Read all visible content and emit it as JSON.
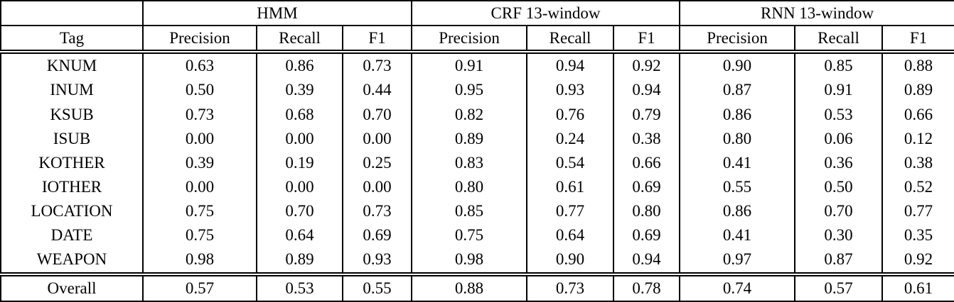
{
  "colors": {
    "text": "#000000",
    "background": "#ffffff",
    "border": "#000000"
  },
  "table": {
    "groups": [
      {
        "label": "HMM"
      },
      {
        "label": "CRF 13-window"
      },
      {
        "label": "RNN 13-window"
      }
    ],
    "tag_header": "Tag",
    "metric_headers": [
      "Precision",
      "Recall",
      "F1"
    ],
    "rows": [
      [
        "KNUM",
        "0.63",
        "0.86",
        "0.73",
        "0.91",
        "0.94",
        "0.92",
        "0.90",
        "0.85",
        "0.88"
      ],
      [
        "INUM",
        "0.50",
        "0.39",
        "0.44",
        "0.95",
        "0.93",
        "0.94",
        "0.87",
        "0.91",
        "0.89"
      ],
      [
        "KSUB",
        "0.73",
        "0.68",
        "0.70",
        "0.82",
        "0.76",
        "0.79",
        "0.86",
        "0.53",
        "0.66"
      ],
      [
        "ISUB",
        "0.00",
        "0.00",
        "0.00",
        "0.89",
        "0.24",
        "0.38",
        "0.80",
        "0.06",
        "0.12"
      ],
      [
        "KOTHER",
        "0.39",
        "0.19",
        "0.25",
        "0.83",
        "0.54",
        "0.66",
        "0.41",
        "0.36",
        "0.38"
      ],
      [
        "IOTHER",
        "0.00",
        "0.00",
        "0.00",
        "0.80",
        "0.61",
        "0.69",
        "0.55",
        "0.50",
        "0.52"
      ],
      [
        "LOCATION",
        "0.75",
        "0.70",
        "0.73",
        "0.85",
        "0.77",
        "0.80",
        "0.86",
        "0.70",
        "0.77"
      ],
      [
        "DATE",
        "0.75",
        "0.64",
        "0.69",
        "0.75",
        "0.64",
        "0.69",
        "0.41",
        "0.30",
        "0.35"
      ],
      [
        "WEAPON",
        "0.98",
        "0.89",
        "0.93",
        "0.98",
        "0.90",
        "0.94",
        "0.97",
        "0.87",
        "0.92"
      ]
    ],
    "overall": [
      "Overall",
      "0.57",
      "0.53",
      "0.55",
      "0.88",
      "0.73",
      "0.78",
      "0.74",
      "0.57",
      "0.61"
    ]
  }
}
